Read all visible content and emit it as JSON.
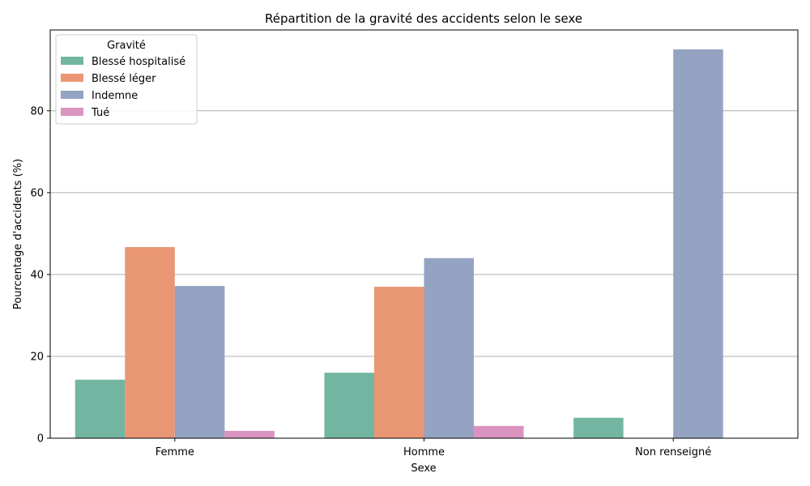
{
  "chart_data": {
    "type": "bar",
    "title": "Répartition de la gravité des accidents selon le sexe",
    "xlabel": "Sexe",
    "ylabel": "Pourcentage d'accidents (%)",
    "categories": [
      "Femme",
      "Homme",
      "Non renseigné"
    ],
    "series": [
      {
        "name": "Blessé hospitalisé",
        "color": "#72b6a1",
        "values": [
          14.3,
          16.0,
          5.0
        ]
      },
      {
        "name": "Blessé léger",
        "color": "#e99675",
        "values": [
          46.7,
          37.0,
          0
        ]
      },
      {
        "name": "Indemne",
        "color": "#95a3c3",
        "values": [
          37.2,
          44.0,
          95.0
        ]
      },
      {
        "name": "Tué",
        "color": "#db94c0",
        "values": [
          1.8,
          3.0,
          0
        ]
      }
    ],
    "ylim": [
      0,
      99.75
    ],
    "yticks": [
      0,
      20,
      40,
      60,
      80
    ],
    "grid": "y",
    "legend": {
      "title": "Gravité",
      "placement": "top-left"
    }
  }
}
